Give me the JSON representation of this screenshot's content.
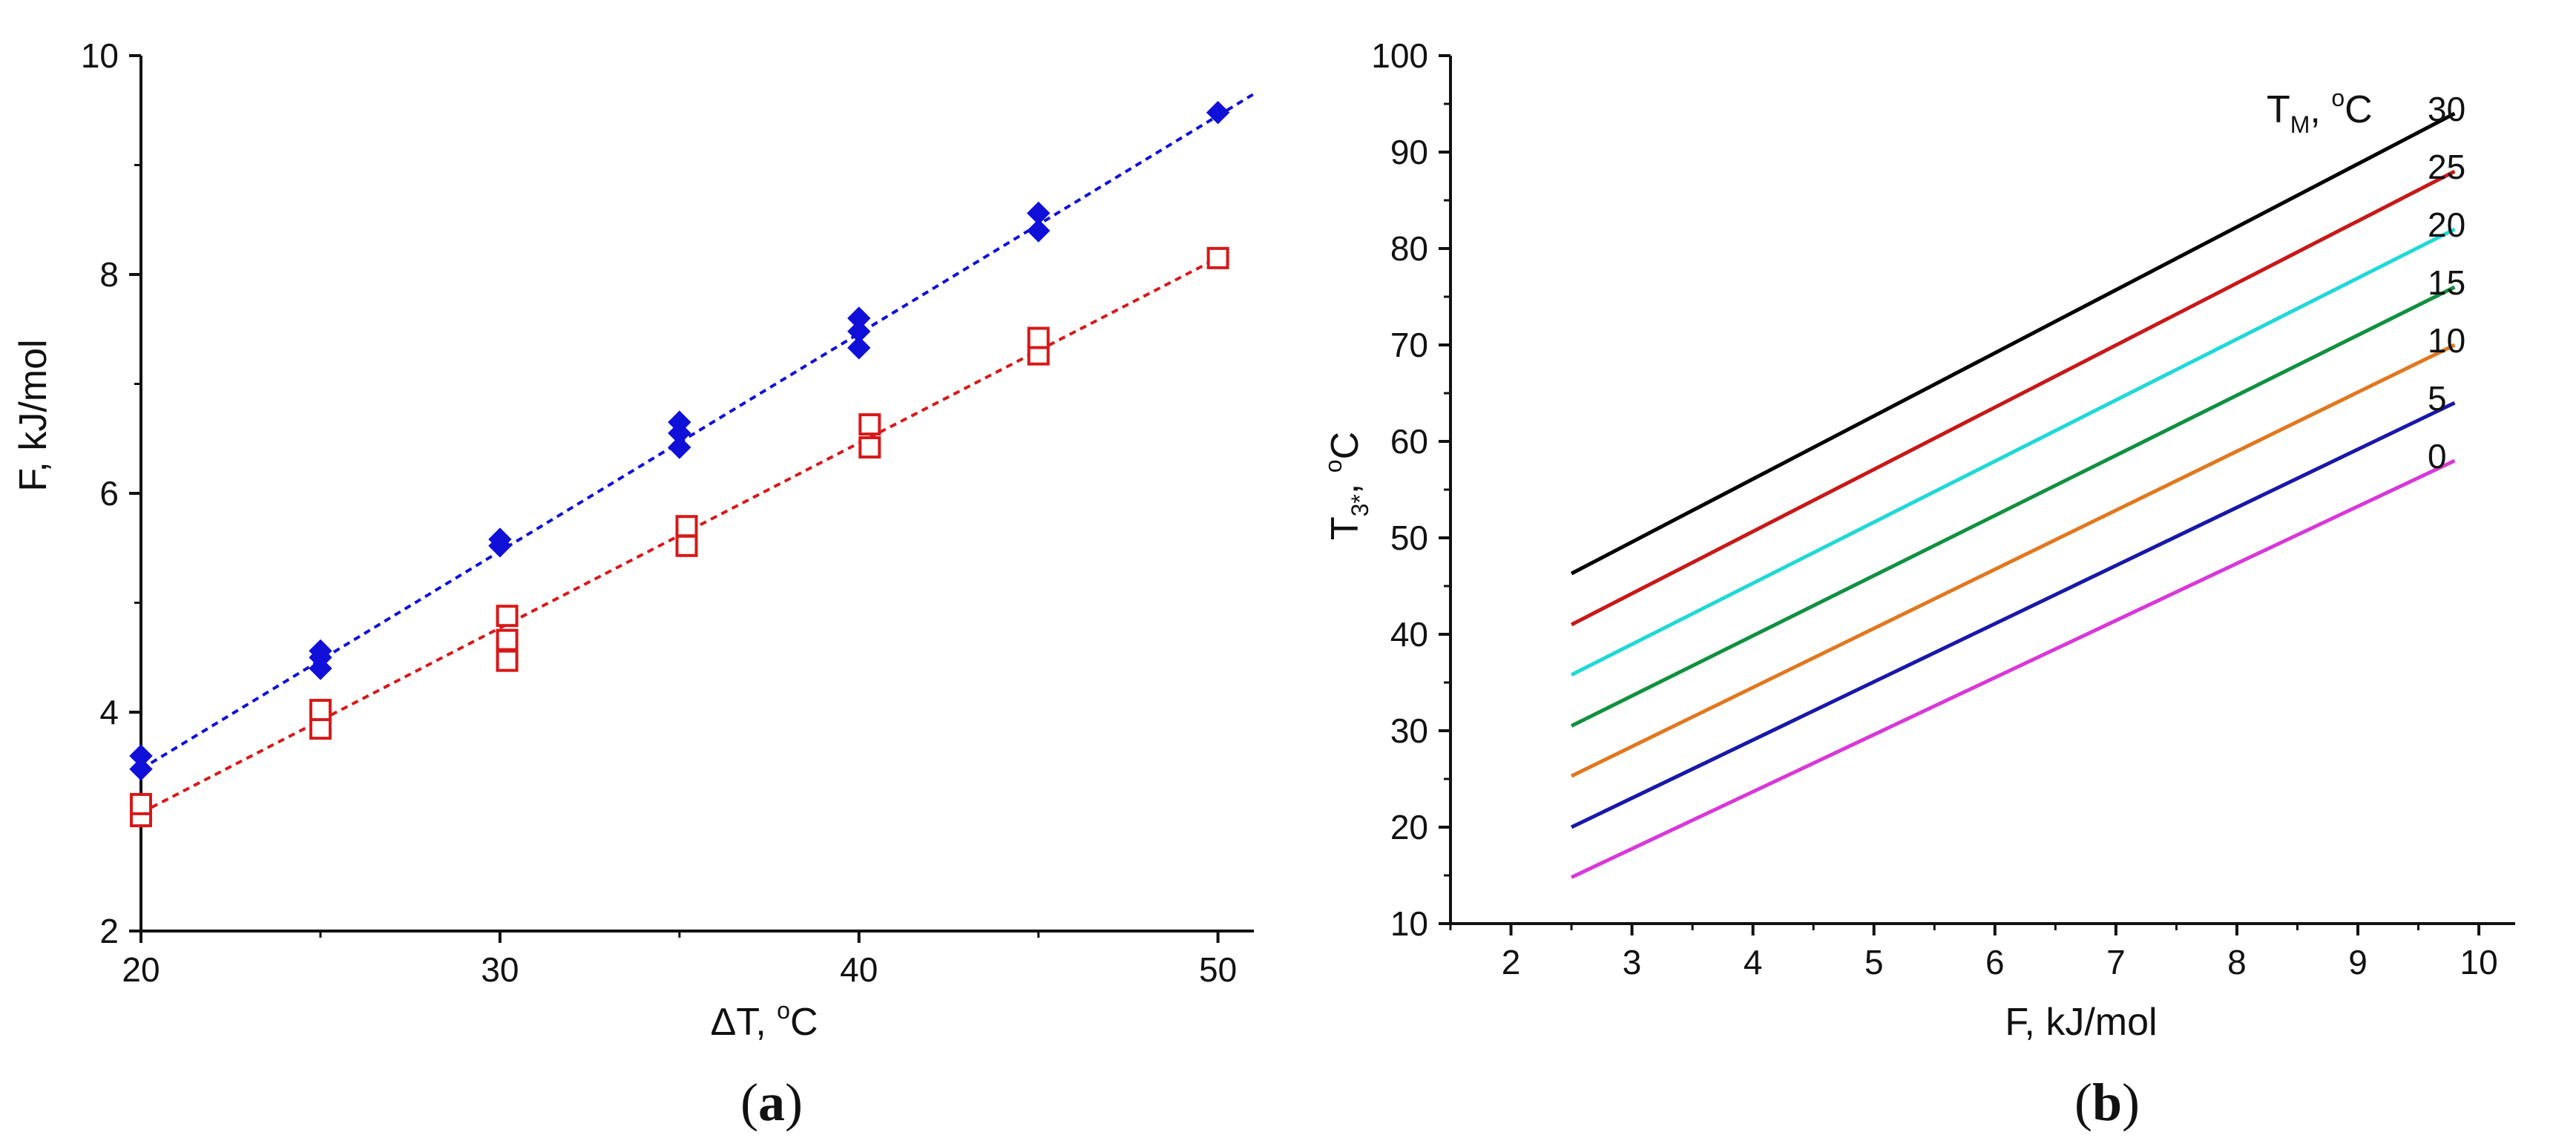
{
  "chart_data": [
    {
      "type": "scatter",
      "panel": "(a)",
      "panel_letter": "a",
      "xlabel": "ΔT, °C",
      "xlabel_main": "ΔT, ",
      "xlabel_sup": "o",
      "xlabel_tail": "C",
      "ylabel": "F, kJ/mol",
      "xlim": [
        20,
        51
      ],
      "ylim": [
        2,
        10
      ],
      "xticks": [
        20,
        30,
        40,
        50
      ],
      "yticks": [
        2,
        4,
        6,
        8,
        10
      ],
      "grid": false,
      "series": [
        {
          "name": "blue diamonds",
          "marker": "filled-diamond",
          "color": "#1010d8",
          "points": [
            [
              20,
              3.48
            ],
            [
              20,
              3.6
            ],
            [
              25,
              4.4
            ],
            [
              25,
              4.5
            ],
            [
              25,
              4.56
            ],
            [
              30,
              5.52
            ],
            [
              30,
              5.58
            ],
            [
              35,
              6.42
            ],
            [
              35,
              6.55
            ],
            [
              35,
              6.65
            ],
            [
              40,
              7.33
            ],
            [
              40,
              7.48
            ],
            [
              40,
              7.6
            ],
            [
              45,
              8.4
            ],
            [
              45,
              8.56
            ],
            [
              50,
              9.48
            ]
          ],
          "fit": {
            "x": [
              20,
              51
            ],
            "y": [
              3.48,
              9.65
            ]
          }
        },
        {
          "name": "red squares",
          "marker": "open-square",
          "color": "#d81818",
          "points": [
            [
              20,
              3.05
            ],
            [
              20,
              3.16
            ],
            [
              25,
              3.85
            ],
            [
              25,
              4.02
            ],
            [
              30.2,
              4.47
            ],
            [
              30.2,
              4.66
            ],
            [
              30.2,
              4.88
            ],
            [
              35.2,
              5.52
            ],
            [
              35.2,
              5.7
            ],
            [
              40.3,
              6.42
            ],
            [
              40.3,
              6.63
            ],
            [
              45,
              7.27
            ],
            [
              45,
              7.42
            ],
            [
              50,
              8.15
            ]
          ],
          "fit": {
            "x": [
              20,
              50
            ],
            "y": [
              3.08,
              8.15
            ]
          }
        }
      ]
    },
    {
      "type": "line",
      "panel": "(b)",
      "panel_letter": "b",
      "xlabel": "F, kJ/mol",
      "ylabel": "T3*, °C",
      "ylabel_main": "T",
      "ylabel_sub": "3*",
      "ylabel_comma": ", ",
      "ylabel_sup": "o",
      "ylabel_tail": "C",
      "legend_title": "TM, °C",
      "legend_title_main": "T",
      "legend_title_sub": "M",
      "legend_title_comma": ", ",
      "legend_title_sup": "o",
      "legend_title_tail": "C",
      "xlim": [
        1.5,
        10.3
      ],
      "ylim": [
        10,
        100
      ],
      "xticks": [
        2,
        3,
        4,
        5,
        6,
        7,
        8,
        9,
        10
      ],
      "yticks": [
        10,
        20,
        30,
        40,
        50,
        60,
        70,
        80,
        90,
        100
      ],
      "grid": false,
      "series": [
        {
          "name": "30",
          "color": "#000000",
          "x": [
            2.5,
            9.8
          ],
          "y": [
            46.3,
            94.0
          ]
        },
        {
          "name": "25",
          "color": "#c81818",
          "x": [
            2.5,
            9.8
          ],
          "y": [
            41.0,
            88.0
          ]
        },
        {
          "name": "20",
          "color": "#20d8d8",
          "x": [
            2.5,
            9.8
          ],
          "y": [
            35.8,
            82.0
          ]
        },
        {
          "name": "15",
          "color": "#109040",
          "x": [
            2.5,
            9.8
          ],
          "y": [
            30.5,
            76.0
          ]
        },
        {
          "name": "10",
          "color": "#e07820",
          "x": [
            2.5,
            9.8
          ],
          "y": [
            25.3,
            70.0
          ]
        },
        {
          "name": "5",
          "color": "#1818a8",
          "x": [
            2.5,
            9.8
          ],
          "y": [
            20.0,
            64.0
          ]
        },
        {
          "name": "0",
          "color": "#d838d8",
          "x": [
            2.5,
            9.8
          ],
          "y": [
            14.8,
            58.0
          ]
        }
      ]
    }
  ]
}
